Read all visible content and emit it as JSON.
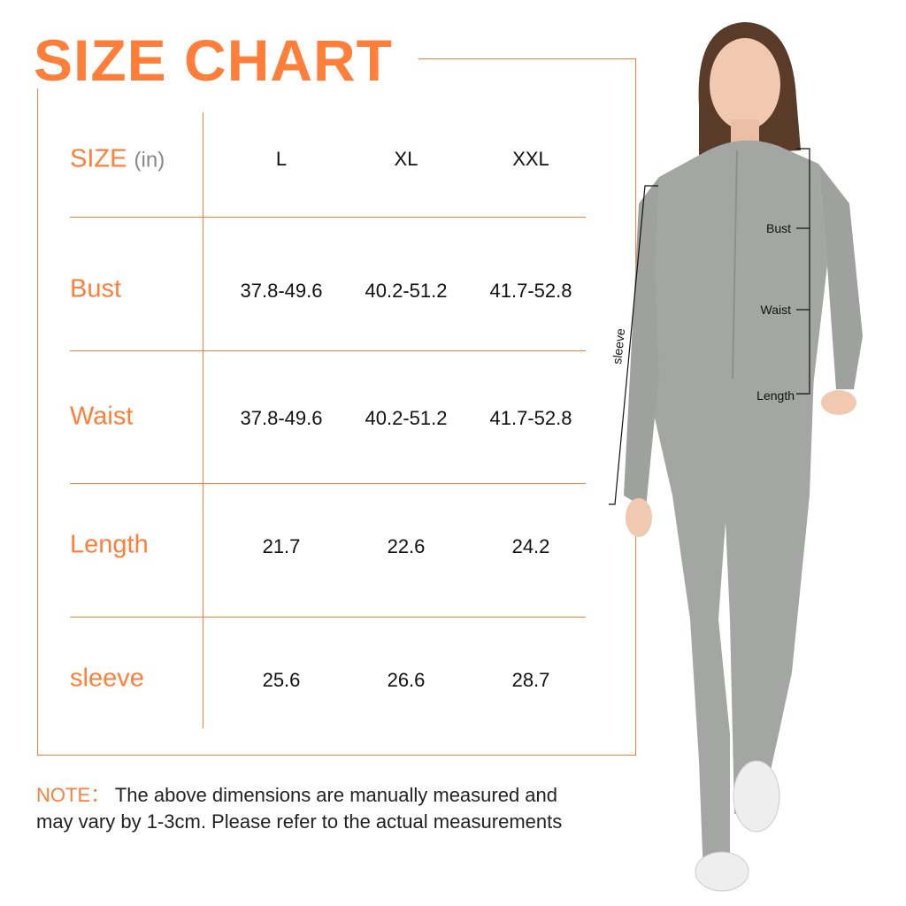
{
  "title": "SIZE CHART",
  "header": {
    "label": "SIZE",
    "unit": "(in)",
    "sizes": [
      "L",
      "XL",
      "XXL"
    ]
  },
  "rows": [
    {
      "label": "Bust",
      "values": [
        "37.8-49.6",
        "40.2-51.2",
        "41.7-52.8"
      ]
    },
    {
      "label": "Waist",
      "values": [
        "37.8-49.6",
        "40.2-51.2",
        "41.7-52.8"
      ]
    },
    {
      "label": "Length",
      "values": [
        "21.7",
        "22.6",
        "24.2"
      ]
    },
    {
      "label": "sleeve",
      "values": [
        "25.6",
        "26.6",
        "28.7"
      ]
    }
  ],
  "note": {
    "key": "NOTE：",
    "text": " The above dimensions are manually measured and may vary by 1-3cm. Please refer to the actual measurements"
  },
  "figure": {
    "annotations": {
      "bust": "Bust",
      "waist": "Waist",
      "length": "Length",
      "sleeve": "sleeve"
    }
  },
  "colors": {
    "accent": "#ff7f3a",
    "garment": "#a3a6a3"
  }
}
